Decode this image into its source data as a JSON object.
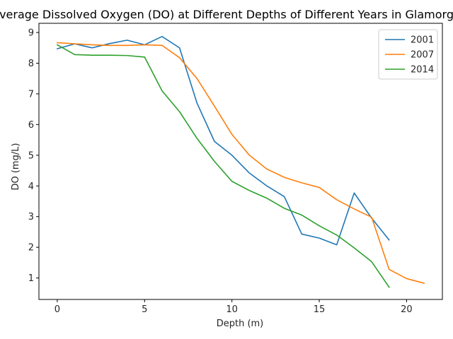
{
  "chart_data": {
    "type": "line",
    "title": "Average Dissolved Oxygen (DO) at Different Depths of Different Years in Glamorgan",
    "xlabel": "Depth (m)",
    "ylabel": "DO (mg/L)",
    "xlim": [
      -1.05,
      22.05
    ],
    "ylim": [
      0.3,
      9.3
    ],
    "xticks": [
      0,
      5,
      10,
      15,
      20
    ],
    "yticks": [
      1,
      2,
      3,
      4,
      5,
      6,
      7,
      8,
      9
    ],
    "legend_position": "top-right",
    "series": [
      {
        "name": "2001",
        "color": "#1f77b4",
        "x": [
          0,
          1,
          2,
          3,
          4,
          5,
          6,
          7,
          8,
          9,
          10,
          11,
          12,
          13,
          14,
          15,
          16,
          17,
          18,
          19
        ],
        "values": [
          8.47,
          8.63,
          8.5,
          8.64,
          8.75,
          8.6,
          8.87,
          8.5,
          6.7,
          5.45,
          5.0,
          4.42,
          4.0,
          3.65,
          2.43,
          2.3,
          2.08,
          3.77,
          2.95,
          2.24
        ]
      },
      {
        "name": "2007",
        "color": "#ff7f0e",
        "x": [
          0,
          1,
          2,
          3,
          4,
          5,
          6,
          7,
          8,
          9,
          10,
          11,
          12,
          13,
          14,
          15,
          16,
          17,
          18,
          19,
          20,
          21
        ],
        "values": [
          8.67,
          8.63,
          8.6,
          8.58,
          8.58,
          8.6,
          8.58,
          8.18,
          7.5,
          6.6,
          5.68,
          5.0,
          4.55,
          4.28,
          4.1,
          3.95,
          3.55,
          3.25,
          2.98,
          1.28,
          0.98,
          0.83
        ]
      },
      {
        "name": "2014",
        "color": "#2ca02c",
        "x": [
          0,
          1,
          2,
          3,
          4,
          5,
          6,
          7,
          8,
          9,
          10,
          11,
          12,
          13,
          14,
          15,
          16,
          17,
          18,
          19
        ],
        "values": [
          8.6,
          8.28,
          8.26,
          8.26,
          8.25,
          8.2,
          7.1,
          6.42,
          5.55,
          4.8,
          4.15,
          3.85,
          3.6,
          3.27,
          3.05,
          2.7,
          2.4,
          1.98,
          1.53,
          0.7
        ]
      }
    ]
  }
}
